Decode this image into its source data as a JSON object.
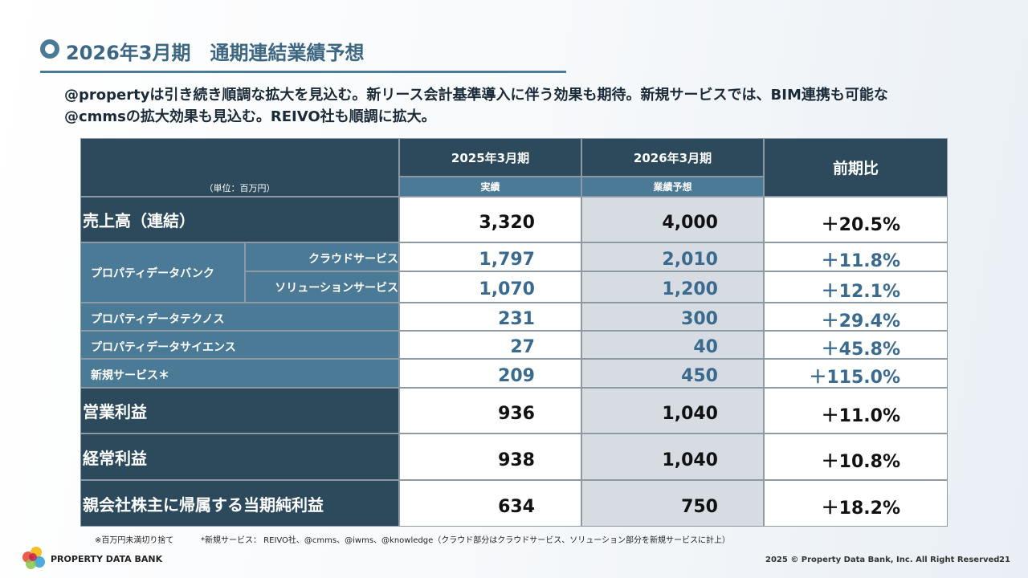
{
  "header": {
    "title": "2026年3月期　通期連結業績予想",
    "lines": [
      "@propertyは引き続き順調な拡大を見込む。新リース会計基準導入に伴う効果も期待。新規サービスでは、BIM連携も可能な",
      "@cmmsの拡大効果も見込む。REIVO社も順調に拡大。"
    ]
  },
  "table": {
    "unit": "（単位：百万円）",
    "columns": [
      {
        "period": "2025年3月期",
        "label": "実績"
      },
      {
        "period": "2026年3月期",
        "label": "業績予想"
      }
    ],
    "change": "前期比",
    "rows": [
      {
        "label": "売上高（連結）",
        "values": [
          "3,320",
          "4,000",
          "＋20.5%"
        ]
      },
      {
        "label": "プロパティデータバンク",
        "items": [
          {
            "label": "クラウドサービス",
            "values": [
              "1,797",
              "2,010",
              "＋11.8%"
            ]
          },
          {
            "label": "ソリューションサービス",
            "values": [
              "1,070",
              "1,200",
              "＋12.1%"
            ]
          }
        ]
      },
      {
        "label": "プロパティデータテクノス",
        "values": [
          "231",
          "300",
          "＋29.4%"
        ]
      },
      {
        "label": "プロパティデータサイエンス",
        "values": [
          "27",
          "40",
          "＋45.8%"
        ]
      },
      {
        "label": "新規サービス＊",
        "values": [
          "209",
          "450",
          "＋115.0%"
        ]
      },
      {
        "label": "営業利益",
        "values": [
          "936",
          "1,040",
          "＋11.0%"
        ]
      },
      {
        "label": "経常利益",
        "values": [
          "938",
          "1,040",
          "＋10.8%"
        ]
      },
      {
        "label": "親会社株主に帰属する当期純利益",
        "values": [
          "634",
          "750",
          "＋18.2%"
        ]
      }
    ]
  },
  "notes": [
    "※百万円未満切り捨て",
    "*新規サービス： REIVO社、@cmms、@iwms、@knowledge（クラウド部分はクラウドサービス、ソリューション部分を新規サービスに計上）"
  ],
  "footer": {
    "logo": "PROPERTY DATA BANK",
    "copyright": "2025 © Property Data Bank, Inc. All Right Reserved.",
    "page": "21"
  }
}
